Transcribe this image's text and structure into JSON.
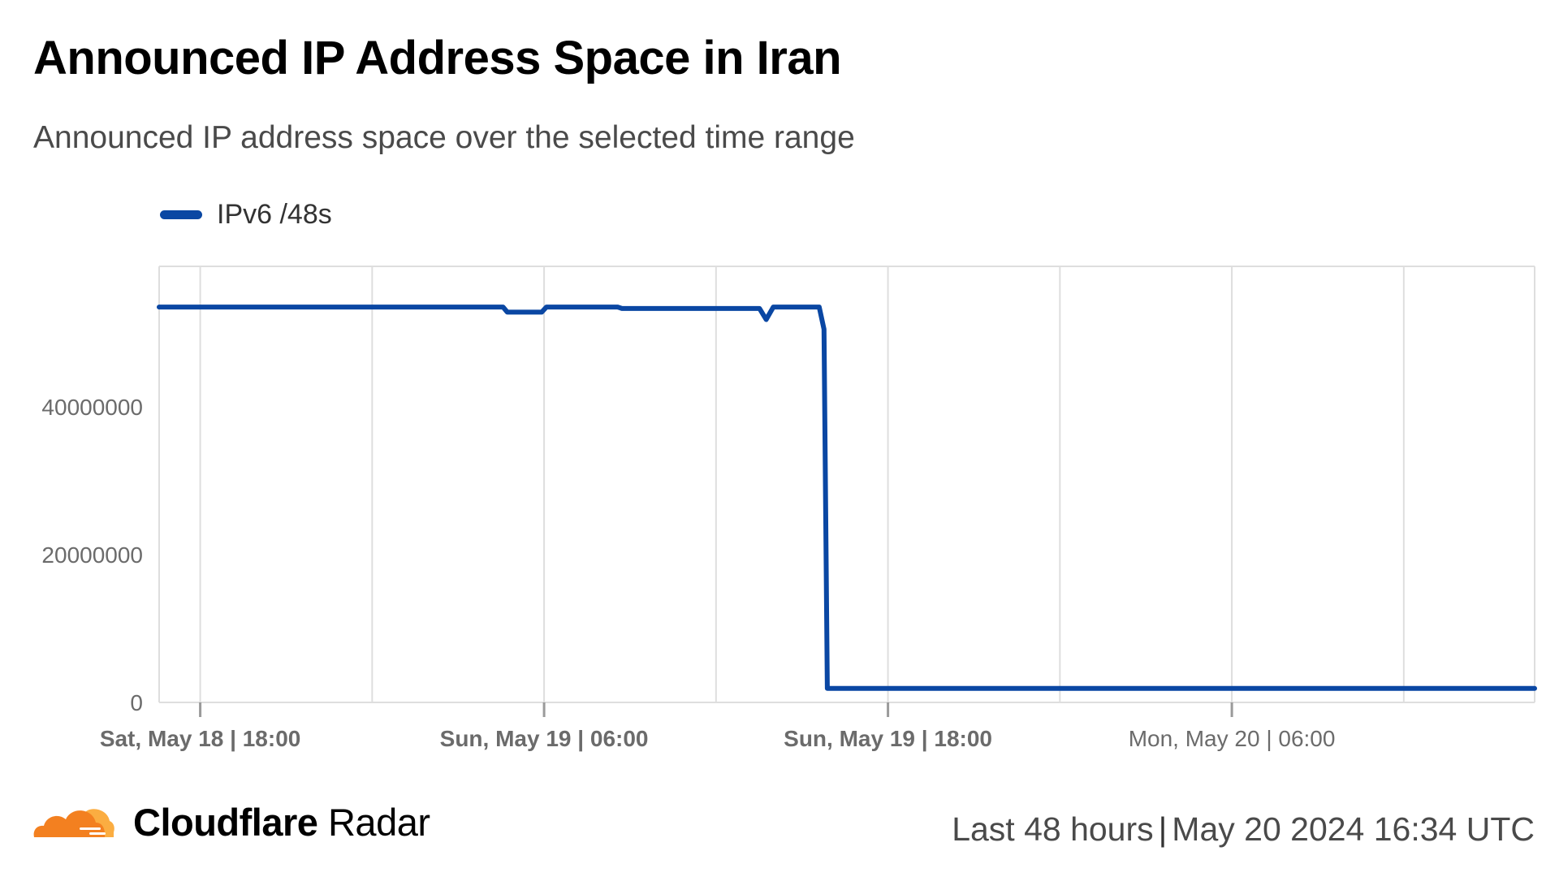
{
  "header": {
    "title": "Announced IP Address Space in Iran",
    "subtitle": "Announced IP address space over the selected time range"
  },
  "colors": {
    "series": "#0a47a3",
    "grid": "#dedede",
    "axis_text": "#6b6b6b",
    "bold_tick_text": "#6b6b6b",
    "logo_orange": "#f38020",
    "logo_light": "#fbad41"
  },
  "chart_data": {
    "type": "line",
    "title": "Announced IP Address Space in Iran",
    "subtitle": "Announced IP address space over the selected time range",
    "legend": {
      "position": "top-left",
      "entries": [
        "IPv6 /48s"
      ]
    },
    "grid": true,
    "xlim": [
      "2024-05-18T16:34",
      "2024-05-20T16:34"
    ],
    "ylim": [
      0,
      59000000
    ],
    "y_ticks": [
      {
        "value": 0,
        "label": "0"
      },
      {
        "value": 20000000,
        "label": "20000000"
      },
      {
        "value": 40000000,
        "label": "40000000"
      }
    ],
    "x_ticks": [
      {
        "t": "2024-05-18T18:00",
        "label": "Sat, May 18 | 18:00",
        "bold": true
      },
      {
        "t": "2024-05-19T06:00",
        "label": "Sun, May 19 | 06:00",
        "bold": true
      },
      {
        "t": "2024-05-19T18:00",
        "label": "Sun, May 19 | 18:00",
        "bold": true
      },
      {
        "t": "2024-05-20T06:00",
        "label": "Mon, May 20 | 06:00",
        "bold": false
      }
    ],
    "series": [
      {
        "name": "IPv6 /48s",
        "points": [
          [
            "2024-05-18T16:34",
            53500000
          ],
          [
            "2024-05-19T04:34",
            53500000
          ],
          [
            "2024-05-19T04:43",
            52800000
          ],
          [
            "2024-05-19T05:55",
            52800000
          ],
          [
            "2024-05-19T06:05",
            53500000
          ],
          [
            "2024-05-19T08:34",
            53500000
          ],
          [
            "2024-05-19T08:43",
            53300000
          ],
          [
            "2024-05-19T13:31",
            53300000
          ],
          [
            "2024-05-19T13:45",
            51800000
          ],
          [
            "2024-05-19T14:00",
            53500000
          ],
          [
            "2024-05-19T15:36",
            53500000
          ],
          [
            "2024-05-19T15:46",
            50500000
          ],
          [
            "2024-05-19T15:53",
            1900000
          ],
          [
            "2024-05-20T16:34",
            1900000
          ]
        ]
      }
    ]
  },
  "footer": {
    "brand_bold": "Cloudflare",
    "brand_light": "Radar",
    "range": "Last 48 hours",
    "separator": "|",
    "timestamp": "May 20 2024 16:34 UTC"
  }
}
